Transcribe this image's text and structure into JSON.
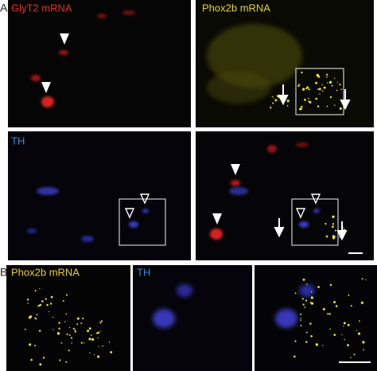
{
  "panel_a": {
    "label": "A",
    "panels": [
      {
        "label": "GlyT2 mRNA"
      },
      {
        "label": "Phox2b mRNA"
      },
      {
        "label": "TH"
      }
    ]
  },
  "panel_b": {
    "label": "B",
    "panels": [
      {
        "label": "Phox2b mRNA"
      },
      {
        "label": "TH"
      }
    ]
  }
}
